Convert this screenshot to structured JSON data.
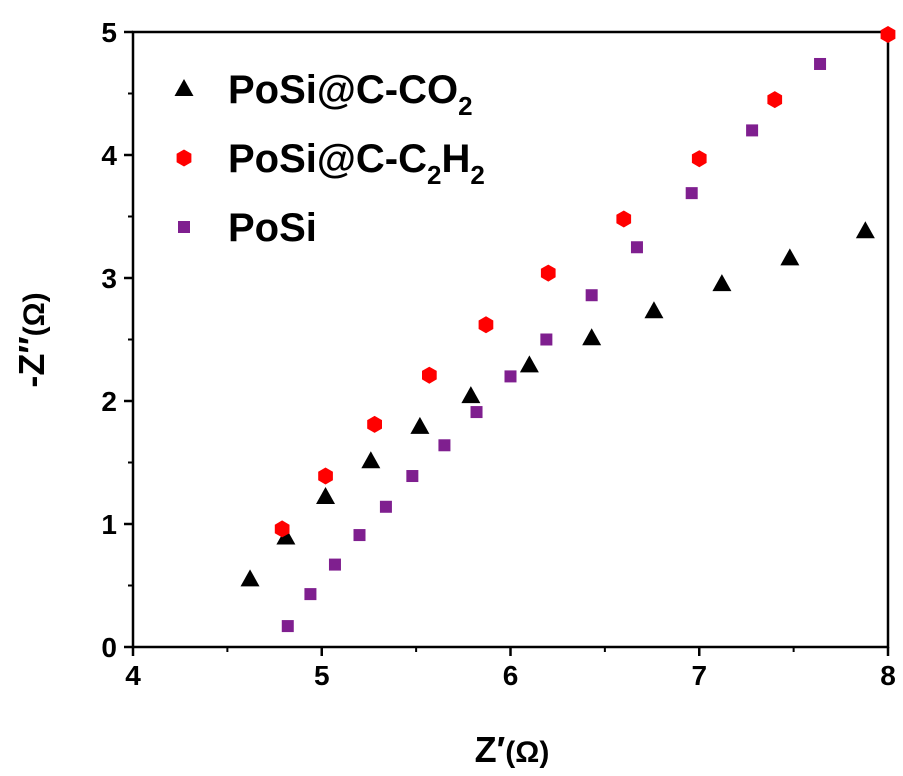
{
  "chart_data": {
    "type": "scatter",
    "xlabel": {
      "main": "Z",
      "prime": "′",
      "unit": "(Ω)"
    },
    "ylabel": {
      "main": "-Z",
      "prime": "″",
      "unit": "(Ω)"
    },
    "xlim": [
      4,
      8
    ],
    "ylim": [
      0,
      5
    ],
    "xticks": [
      "4",
      "5",
      "6",
      "7",
      "8"
    ],
    "yticks": [
      "0",
      "1",
      "2",
      "3",
      "4",
      "5"
    ],
    "grid": false,
    "legend_position": "top-left",
    "series": [
      {
        "name": "PoSi@C-CO2",
        "label_parts": [
          {
            "text": "PoSi@C-CO"
          },
          {
            "text": "2",
            "sub": true
          }
        ],
        "marker": "triangle",
        "color": "#000000",
        "x": [
          4.62,
          4.81,
          5.02,
          5.26,
          5.52,
          5.79,
          6.1,
          6.43,
          6.76,
          7.12,
          7.48,
          7.88
        ],
        "y": [
          0.55,
          0.89,
          1.22,
          1.51,
          1.79,
          2.04,
          2.29,
          2.51,
          2.73,
          2.95,
          3.16,
          3.38
        ]
      },
      {
        "name": "PoSi@C-C2H2",
        "label_parts": [
          {
            "text": "PoSi@C-C"
          },
          {
            "text": "2",
            "sub": true
          },
          {
            "text": "H"
          },
          {
            "text": "2",
            "sub": true
          }
        ],
        "marker": "hexagon",
        "color": "#ff0000",
        "x": [
          4.79,
          5.02,
          5.28,
          5.57,
          5.87,
          6.2,
          6.6,
          7.0,
          7.4,
          8.0
        ],
        "y": [
          0.96,
          1.39,
          1.81,
          2.21,
          2.62,
          3.04,
          3.48,
          3.97,
          4.45,
          4.98
        ]
      },
      {
        "name": "PoSi",
        "label_parts": [
          {
            "text": "PoSi"
          }
        ],
        "marker": "square",
        "color": "#7f1f8f",
        "x": [
          4.82,
          4.94,
          5.07,
          5.2,
          5.34,
          5.48,
          5.65,
          5.82,
          6.0,
          6.19,
          6.43,
          6.67,
          6.96,
          7.28,
          7.64
        ],
        "y": [
          0.17,
          0.43,
          0.67,
          0.91,
          1.14,
          1.39,
          1.64,
          1.91,
          2.2,
          2.5,
          2.86,
          3.25,
          3.69,
          4.2,
          4.74
        ]
      }
    ]
  }
}
